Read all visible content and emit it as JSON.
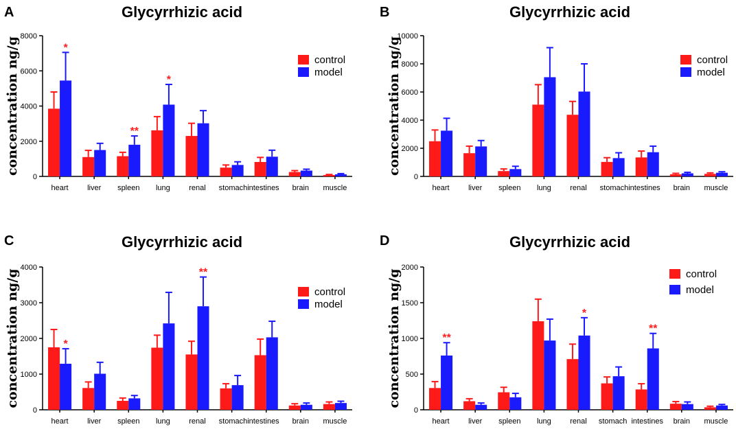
{
  "colors": {
    "control": "#ff1a1a",
    "model": "#1a1aff",
    "significance": "#ff1e1e",
    "axis": "#000000"
  },
  "chart_data": [
    {
      "panel": "A",
      "type": "bar",
      "title": "Glycyrrhizic acid",
      "ylabel": "concentration ng/g",
      "xlabel": "",
      "ylim": [
        0,
        8000
      ],
      "yticks": [
        0,
        2000,
        4000,
        6000,
        8000
      ],
      "legend_position": "top-right",
      "categories": [
        "heart",
        "liver",
        "spleen",
        "lung",
        "renal",
        "stomach",
        "intestines",
        "brain",
        "muscle"
      ],
      "category_labels": [
        "heart",
        "liver",
        "spleen",
        "lung",
        "renal",
        "stomachintestines",
        "brain",
        "muscle"
      ],
      "series": [
        {
          "name": "control",
          "values": [
            3850,
            1100,
            1150,
            2620,
            2300,
            500,
            820,
            250,
            80
          ],
          "errors": [
            950,
            380,
            220,
            780,
            720,
            150,
            260,
            80,
            30
          ]
        },
        {
          "name": "model",
          "values": [
            5450,
            1500,
            1800,
            4080,
            3020,
            650,
            1120,
            330,
            120
          ],
          "errors": [
            1600,
            380,
            500,
            1150,
            720,
            180,
            370,
            80,
            40
          ]
        }
      ],
      "annotations": [
        {
          "category": "heart",
          "series": "model",
          "label": "*"
        },
        {
          "category": "spleen",
          "series": "model",
          "label": "**"
        },
        {
          "category": "lung",
          "series": "model",
          "label": "*"
        }
      ]
    },
    {
      "panel": "B",
      "type": "bar",
      "title": "Glycyrrhizic acid",
      "ylabel": "concentration ng/g",
      "xlabel": "",
      "ylim": [
        0,
        10000
      ],
      "yticks": [
        0,
        2000,
        4000,
        6000,
        8000,
        10000
      ],
      "legend_position": "top-right",
      "categories": [
        "heart",
        "liver",
        "spleen",
        "lung",
        "renal",
        "stomach",
        "intestines",
        "brain",
        "muscle"
      ],
      "category_labels": [
        "heart",
        "liver",
        "spleen",
        "lung",
        "renal",
        "stomachintestines",
        "brain",
        "muscle"
      ],
      "series": [
        {
          "name": "control",
          "values": [
            2500,
            1650,
            380,
            5100,
            4380,
            1030,
            1350,
            150,
            180
          ],
          "errors": [
            800,
            500,
            150,
            1420,
            950,
            300,
            450,
            70,
            70
          ]
        },
        {
          "name": "model",
          "values": [
            3250,
            2130,
            520,
            7050,
            6030,
            1300,
            1720,
            220,
            260
          ],
          "errors": [
            880,
            420,
            200,
            2100,
            1970,
            380,
            430,
            70,
            70
          ]
        }
      ],
      "annotations": []
    },
    {
      "panel": "C",
      "type": "bar",
      "title": "Glycyrrhizic acid",
      "ylabel": "concentration ng/g",
      "xlabel": "",
      "ylim": [
        0,
        4000
      ],
      "yticks": [
        0,
        1000,
        2000,
        3000,
        4000
      ],
      "legend_position": "top-right",
      "categories": [
        "heart",
        "liver",
        "spleen",
        "lung",
        "renal",
        "stomach",
        "intestines",
        "brain",
        "muscle"
      ],
      "category_labels": [
        "heart",
        "liver",
        "spleen",
        "lung",
        "renal",
        "stomachintestines",
        "brain",
        "muscle"
      ],
      "series": [
        {
          "name": "control",
          "values": [
            1750,
            610,
            250,
            1740,
            1550,
            600,
            1530,
            120,
            160
          ],
          "errors": [
            500,
            170,
            80,
            350,
            370,
            130,
            450,
            50,
            60
          ]
        },
        {
          "name": "model",
          "values": [
            1290,
            1010,
            320,
            2420,
            2900,
            690,
            2030,
            140,
            190
          ],
          "errors": [
            420,
            320,
            80,
            870,
            820,
            270,
            450,
            50,
            50
          ]
        }
      ],
      "annotations": [
        {
          "category": "heart",
          "series": "model",
          "label": "*"
        },
        {
          "category": "renal",
          "series": "model",
          "label": "**"
        }
      ]
    },
    {
      "panel": "D",
      "type": "bar",
      "title": "Glycyrrhizic acid",
      "ylabel": "concentration ng/g",
      "xlabel": "",
      "ylim": [
        0,
        2000
      ],
      "yticks": [
        0,
        500,
        1000,
        1500,
        2000
      ],
      "legend_position": "top-right",
      "categories": [
        "heart",
        "liver",
        "spleen",
        "lung",
        "renal",
        "stomach",
        "intestines",
        "brain",
        "muscle"
      ],
      "category_labels": [
        "heart",
        "liver",
        "spleen",
        "lung",
        "renal",
        "stomach",
        "intestines",
        "brain",
        "muscle"
      ],
      "series": [
        {
          "name": "control",
          "values": [
            305,
            120,
            245,
            1240,
            710,
            370,
            285,
            85,
            35
          ],
          "errors": [
            90,
            35,
            70,
            310,
            210,
            90,
            80,
            30,
            15
          ]
        },
        {
          "name": "model",
          "values": [
            760,
            70,
            175,
            970,
            1040,
            470,
            860,
            80,
            60
          ],
          "errors": [
            180,
            25,
            55,
            300,
            250,
            130,
            210,
            30,
            15
          ]
        }
      ],
      "annotations": [
        {
          "category": "heart",
          "series": "model",
          "label": "**"
        },
        {
          "category": "renal",
          "series": "model",
          "label": "*"
        },
        {
          "category": "intestines",
          "series": "model",
          "label": "**"
        }
      ]
    }
  ]
}
